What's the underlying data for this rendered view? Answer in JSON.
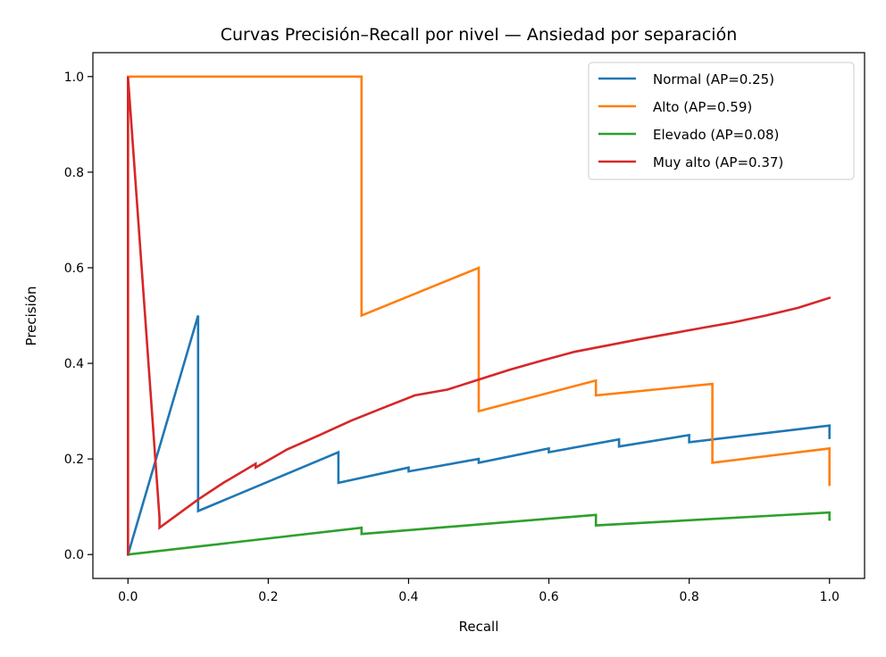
{
  "chart_data": {
    "type": "line",
    "title": "Curvas Precisión–Recall por nivel — Ansiedad por separación",
    "xlabel": "Recall",
    "ylabel": "Precisión",
    "xlim": [
      -0.05,
      1.05
    ],
    "ylim": [
      -0.05,
      1.05
    ],
    "xticks": [
      "0.0",
      "0.2",
      "0.4",
      "0.6",
      "0.8",
      "1.0"
    ],
    "yticks": [
      "0.0",
      "0.2",
      "0.4",
      "0.6",
      "0.8",
      "1.0"
    ],
    "grid": false,
    "legend_position": "top-right",
    "series": [
      {
        "name": "Normal (AP=0.25)",
        "color": "#1f77b4",
        "x": [
          0,
          0.1,
          0.1,
          0.3,
          0.3,
          0.4,
          0.4,
          0.5,
          0.5,
          0.6,
          0.6,
          0.7,
          0.7,
          0.8,
          0.8,
          1.0,
          1.0
        ],
        "y": [
          0,
          0.5,
          0.091,
          0.214,
          0.15,
          0.182,
          0.174,
          0.2,
          0.192,
          0.222,
          0.214,
          0.241,
          0.226,
          0.25,
          0.235,
          0.27,
          0.244
        ]
      },
      {
        "name": "Alto (AP=0.59)",
        "color": "#ff7f0e",
        "x": [
          0,
          0,
          0.333,
          0.333,
          0.5,
          0.5,
          0.667,
          0.667,
          0.833,
          0.833,
          1.0,
          1.0
        ],
        "y": [
          0,
          1.0,
          1.0,
          0.5,
          0.6,
          0.3,
          0.364,
          0.333,
          0.357,
          0.192,
          0.222,
          0.146
        ]
      },
      {
        "name": "Elevado (AP=0.08)",
        "color": "#2ca02c",
        "x": [
          0,
          0.333,
          0.333,
          0.667,
          0.667,
          1.0,
          1.0
        ],
        "y": [
          0,
          0.056,
          0.043,
          0.083,
          0.061,
          0.088,
          0.073
        ]
      },
      {
        "name": "Muy alto (AP=0.37)",
        "color": "#d62728",
        "x": [
          0,
          0,
          0.045,
          0.045,
          0.1,
          0.136,
          0.182,
          0.182,
          0.227,
          0.273,
          0.318,
          0.364,
          0.409,
          0.455,
          0.5,
          0.545,
          0.591,
          0.636,
          0.682,
          0.727,
          0.773,
          0.818,
          0.864,
          0.909,
          0.955,
          1.0
        ],
        "y": [
          0,
          1.0,
          0.077,
          0.056,
          0.115,
          0.15,
          0.19,
          0.182,
          0.22,
          0.25,
          0.28,
          0.307,
          0.333,
          0.345,
          0.366,
          0.387,
          0.406,
          0.424,
          0.437,
          0.45,
          0.462,
          0.474,
          0.486,
          0.5,
          0.516,
          0.537
        ]
      }
    ]
  }
}
